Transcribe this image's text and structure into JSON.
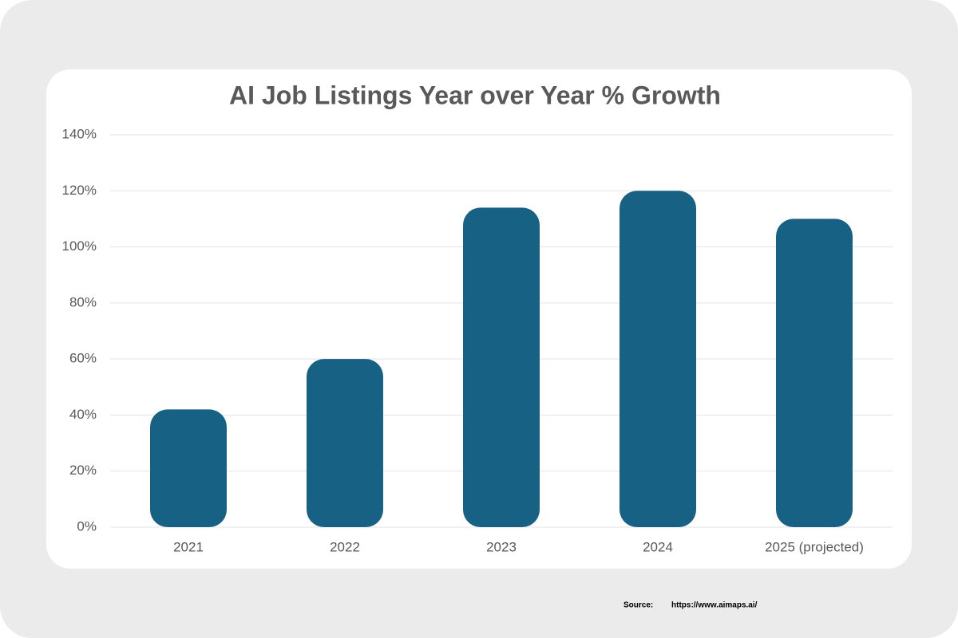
{
  "chart_data": {
    "type": "bar",
    "title": "AI Job Listings Year over Year  % Growth",
    "categories": [
      "2021",
      "2022",
      "2023",
      "2024",
      "2025 (projected)"
    ],
    "values": [
      42,
      60,
      114,
      120,
      110
    ],
    "color": "#176185",
    "ylim": [
      0,
      140
    ],
    "yticks": [
      {
        "value": 0,
        "label": "0%"
      },
      {
        "value": 20,
        "label": "20%"
      },
      {
        "value": 40,
        "label": "40%"
      },
      {
        "value": 60,
        "label": "60%"
      },
      {
        "value": 80,
        "label": "80%"
      },
      {
        "value": 100,
        "label": "100%"
      },
      {
        "value": 120,
        "label": "120%"
      },
      {
        "value": 140,
        "label": "140%"
      }
    ],
    "grid": true,
    "source": "Source:",
    "source_url": "https://www.aimaps.ai/"
  }
}
